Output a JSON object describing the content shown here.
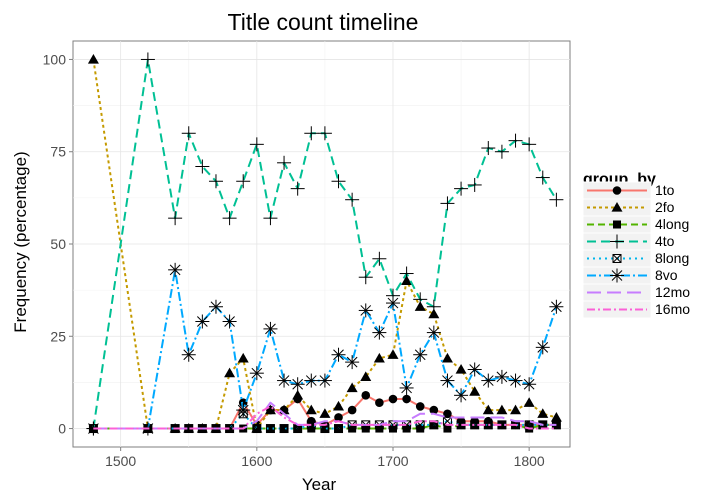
{
  "chart_data": {
    "type": "line",
    "title": "Title count timeline",
    "xlabel": "Year",
    "ylabel": "Frequency (percentage)",
    "xlim": [
      1465,
      1830
    ],
    "ylim": [
      -5,
      105
    ],
    "xticks": [
      1500,
      1600,
      1700,
      1800
    ],
    "yticks": [
      0,
      25,
      50,
      75,
      100
    ],
    "grid": true,
    "legend": {
      "title": "group_by",
      "position": "right"
    },
    "series": [
      {
        "name": "1to",
        "color": "#f8766d",
        "dash": "",
        "marker": "circle",
        "x": [
          1480,
          1520,
          1540,
          1550,
          1560,
          1570,
          1580,
          1590,
          1600,
          1610,
          1620,
          1630,
          1640,
          1650,
          1660,
          1670,
          1680,
          1690,
          1700,
          1710,
          1720,
          1730,
          1740,
          1750,
          1760,
          1770,
          1780,
          1790,
          1800,
          1810,
          1820
        ],
        "y": [
          0,
          0,
          0,
          0,
          0,
          0,
          0,
          7,
          1,
          5,
          5,
          8,
          2,
          1,
          3,
          5,
          9,
          7,
          8,
          8,
          6,
          5,
          4,
          2,
          2,
          2,
          1,
          1,
          1,
          1,
          1
        ]
      },
      {
        "name": "2fo",
        "color": "#c49a00",
        "dash": "3,3",
        "marker": "triangle",
        "x": [
          1480,
          1520,
          1540,
          1550,
          1560,
          1570,
          1580,
          1590,
          1600,
          1610,
          1620,
          1630,
          1640,
          1650,
          1660,
          1670,
          1680,
          1690,
          1700,
          1710,
          1720,
          1730,
          1740,
          1750,
          1760,
          1770,
          1780,
          1790,
          1800,
          1810,
          1820
        ],
        "y": [
          100,
          0,
          0,
          0,
          0,
          0,
          15,
          19,
          0,
          5,
          5,
          9,
          5,
          4,
          6,
          11,
          14,
          19,
          20,
          40,
          33,
          31,
          19,
          16,
          10,
          5,
          5,
          5,
          7,
          4,
          3
        ]
      },
      {
        "name": "4long",
        "color": "#53b400",
        "dash": "7,4",
        "marker": "square",
        "x": [
          1480,
          1520,
          1540,
          1550,
          1560,
          1570,
          1580,
          1590,
          1600,
          1610,
          1620,
          1630,
          1640,
          1650,
          1660,
          1670,
          1680,
          1690,
          1700,
          1710,
          1720,
          1730,
          1740,
          1750,
          1760,
          1770,
          1780,
          1790,
          1800,
          1810,
          1820
        ],
        "y": [
          0,
          0,
          0,
          0,
          0,
          0,
          0,
          0,
          0,
          0,
          0,
          0,
          0,
          0,
          0,
          0,
          0,
          0,
          0,
          0,
          0,
          1,
          0,
          1,
          1,
          1,
          1,
          1,
          0,
          1,
          1
        ]
      },
      {
        "name": "4to",
        "color": "#00c094",
        "dash": "9,5",
        "marker": "plus",
        "x": [
          1480,
          1520,
          1540,
          1550,
          1560,
          1570,
          1580,
          1590,
          1600,
          1610,
          1620,
          1630,
          1640,
          1650,
          1660,
          1670,
          1680,
          1690,
          1700,
          1710,
          1720,
          1730,
          1740,
          1750,
          1760,
          1770,
          1780,
          1790,
          1800,
          1810,
          1820
        ],
        "y": [
          0,
          100,
          57,
          80,
          71,
          67,
          57,
          67,
          77,
          57,
          72,
          65,
          80,
          80,
          67,
          62,
          41,
          46,
          36,
          42,
          35,
          33,
          61,
          65,
          66,
          76,
          75,
          78,
          77,
          68,
          62
        ]
      },
      {
        "name": "8long",
        "color": "#00b6eb",
        "dash": "2,4",
        "marker": "boxx",
        "x": [
          1480,
          1520,
          1540,
          1550,
          1560,
          1570,
          1580,
          1590,
          1600,
          1610,
          1620,
          1630,
          1640,
          1650,
          1660,
          1670,
          1680,
          1690,
          1700,
          1710,
          1720,
          1730,
          1740,
          1750,
          1760,
          1770,
          1780,
          1790,
          1800,
          1810,
          1820
        ],
        "y": [
          0,
          0,
          0,
          0,
          0,
          0,
          0,
          4,
          0,
          0,
          0,
          0,
          1,
          0,
          0,
          1,
          1,
          1,
          1,
          1,
          1,
          1,
          2,
          1,
          1,
          1,
          1,
          1,
          1,
          1,
          1
        ]
      },
      {
        "name": "8vo",
        "color": "#00a9ff",
        "dash": "9,3,2,3",
        "marker": "star",
        "x": [
          1480,
          1520,
          1540,
          1550,
          1560,
          1570,
          1580,
          1590,
          1600,
          1610,
          1620,
          1630,
          1640,
          1650,
          1660,
          1670,
          1680,
          1690,
          1700,
          1710,
          1720,
          1730,
          1740,
          1750,
          1760,
          1770,
          1780,
          1790,
          1800,
          1810,
          1820
        ],
        "y": [
          0,
          0,
          43,
          20,
          29,
          33,
          29,
          5,
          15,
          27,
          13,
          12,
          13,
          13,
          20,
          18,
          32,
          26,
          34,
          11,
          20,
          26,
          13,
          9,
          16,
          13,
          14,
          13,
          12,
          22,
          33
        ]
      },
      {
        "name": "12mo",
        "color": "#c77cff",
        "dash": "14,6",
        "marker": "none",
        "x": [
          1480,
          1520,
          1540,
          1550,
          1560,
          1570,
          1580,
          1590,
          1600,
          1610,
          1620,
          1630,
          1640,
          1650,
          1660,
          1670,
          1680,
          1690,
          1700,
          1710,
          1720,
          1730,
          1740,
          1750,
          1760,
          1770,
          1780,
          1790,
          1800,
          1810,
          1820
        ],
        "y": [
          0,
          0,
          0,
          0,
          0,
          0,
          0,
          0,
          2,
          7,
          4,
          1,
          1,
          2,
          2,
          1,
          1,
          1,
          2,
          2,
          4,
          4,
          3,
          3,
          3,
          3,
          3,
          2,
          2,
          1,
          1
        ]
      },
      {
        "name": "16mo",
        "color": "#fb61d7",
        "dash": "8,3,2,3",
        "marker": "none",
        "x": [
          1480,
          1520,
          1540,
          1550,
          1560,
          1570,
          1580,
          1590,
          1600,
          1610,
          1620,
          1630,
          1640,
          1650,
          1660,
          1670,
          1680,
          1690,
          1700,
          1710,
          1720,
          1730,
          1740,
          1750,
          1760,
          1770,
          1780,
          1790,
          1800,
          1810,
          1820
        ],
        "y": [
          0,
          0,
          0,
          0,
          0,
          0,
          0,
          0,
          4,
          6,
          3,
          1,
          1,
          1,
          2,
          1,
          1,
          1,
          1,
          1,
          2,
          2,
          1,
          1,
          1,
          1,
          1,
          1,
          0,
          0,
          0
        ]
      }
    ]
  }
}
